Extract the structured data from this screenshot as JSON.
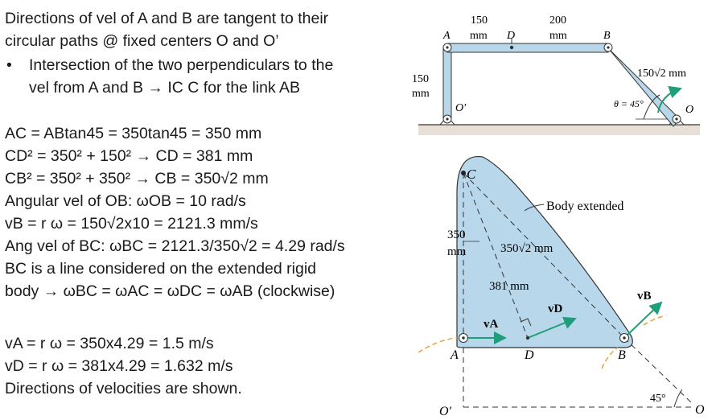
{
  "text_lines": {
    "l1": "Directions of vel of A and B are tangent to their",
    "l2": "circular paths @ fixed centers O and O’",
    "l3": "Intersection of the two perpendiculars to the",
    "l4": "vel from A and B → IC C for the link AB",
    "l5": "AC = ABtan45 = 350tan45 = 350 mm",
    "l6": "CD² = 350² + 150² → CD = 381 mm",
    "l7": "CB² = 350² + 350² → CB = 350√2 mm",
    "l8": "Angular vel of OB: ωOB = 10 rad/s",
    "l9": "vB = r ω = 150√2x10 = 2121.3 mm/s",
    "l10": "Ang vel of BC: ωBC = 2121.3/350√2 = 4.29 rad/s",
    "l11": "BC is a line considered on the extended rigid",
    "l12": "body → ωBC = ωAC = ωDC = ωAB (clockwise)",
    "l13": "vA = r ω = 350x4.29 = 1.5 m/s",
    "l14": "vD = r ω = 381x4.29 = 1.632 m/s",
    "l15": "Directions of velocities are shown."
  },
  "bullet": "•",
  "top_figure": {
    "dim_150_top": "150",
    "dim_mm_1": "mm",
    "dim_200": "200",
    "dim_mm_2": "mm",
    "dim_150_left": "150",
    "dim_mm_left": "mm",
    "dim_150r2": "150√2 mm",
    "angle_label": "θ = 45°",
    "label_A": "A",
    "label_D": "D",
    "label_B": "B",
    "label_O": "O",
    "label_Oprime": "O′"
  },
  "bottom_figure": {
    "label_C": "C",
    "body_extended": "Body extended",
    "dim_350_a": "350",
    "dim_350_b": "mm",
    "dim_350r2": "350√2 mm",
    "dim_381": "381 mm",
    "vA": "vA",
    "vD": "vD",
    "vB": "vB",
    "label_A": "A",
    "label_D": "D",
    "label_B": "B",
    "label_Oprime": "O′",
    "label_O": "O",
    "angle_45": "45°"
  },
  "colors": {
    "link_fill": "#b8d7ea",
    "ground_fill": "#e8e0d6",
    "velocity": "#1f9e7a",
    "orange": "#e8a13c"
  }
}
